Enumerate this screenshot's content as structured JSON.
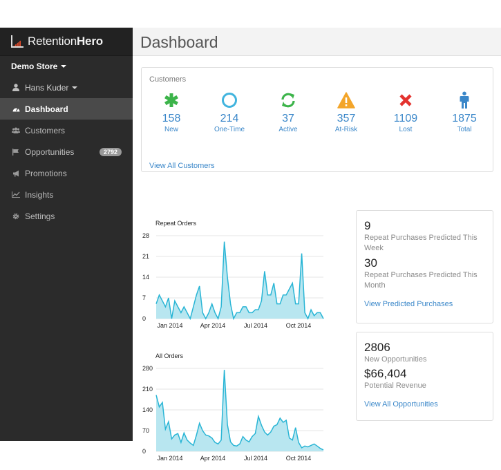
{
  "brand": {
    "name_light": "Retention",
    "name_bold": "Hero"
  },
  "sidebar": {
    "store": "Demo Store",
    "user": "Hans Kuder",
    "items": [
      {
        "label": "Dashboard",
        "icon": "dashboard-icon",
        "active": true
      },
      {
        "label": "Customers",
        "icon": "users-icon"
      },
      {
        "label": "Opportunities",
        "icon": "flag-icon",
        "badge": "2792"
      },
      {
        "label": "Promotions",
        "icon": "megaphone-icon"
      },
      {
        "label": "Insights",
        "icon": "line-chart-icon"
      },
      {
        "label": "Settings",
        "icon": "gear-icon"
      }
    ]
  },
  "header": {
    "title": "Dashboard"
  },
  "customers": {
    "title": "Customers",
    "stats": [
      {
        "value": "158",
        "label": "New",
        "icon": "asterisk-icon",
        "color": "#3cb44a"
      },
      {
        "value": "214",
        "label": "One-Time",
        "icon": "circle-icon",
        "color": "#41b4de"
      },
      {
        "value": "37",
        "label": "Active",
        "icon": "refresh-icon",
        "color": "#3cb44a"
      },
      {
        "value": "357",
        "label": "At-Risk",
        "icon": "warning-icon",
        "color": "#f3a52a"
      },
      {
        "value": "1109",
        "label": "Lost",
        "icon": "x-icon",
        "color": "#e3322e"
      },
      {
        "value": "1875",
        "label": "Total",
        "icon": "person-icon",
        "color": "#3a87c9"
      }
    ],
    "link": "View All Customers"
  },
  "chart_data": [
    {
      "type": "area",
      "title": "Repeat Orders",
      "ylim": [
        0,
        28
      ],
      "yticks": [
        0,
        7,
        14,
        21,
        28
      ],
      "xticks": [
        "Jan 2014",
        "Apr 2014",
        "Jul 2014",
        "Oct 2014"
      ],
      "color": "#29b5d5",
      "fill": "#b8e6f0",
      "grid": true,
      "values": [
        5,
        8,
        6,
        4,
        7,
        0,
        6,
        4,
        2,
        4,
        2,
        0,
        4,
        8,
        11,
        2,
        0,
        2,
        5,
        2,
        0,
        4,
        26,
        14,
        5,
        0,
        2,
        2,
        4,
        4,
        2,
        2,
        3,
        3,
        6,
        16,
        8,
        8,
        12,
        5,
        5,
        8,
        8,
        10,
        12,
        5,
        5,
        22,
        2,
        0,
        3,
        1,
        2,
        2,
        0
      ]
    },
    {
      "type": "area",
      "title": "All Orders",
      "ylim": [
        0,
        280
      ],
      "yticks": [
        0,
        70,
        140,
        210,
        280
      ],
      "xticks": [
        "Jan 2014",
        "Apr 2014",
        "Jul 2014",
        "Oct 2014"
      ],
      "color": "#29b5d5",
      "fill": "#b8e6f0",
      "grid": true,
      "values": [
        190,
        150,
        165,
        75,
        100,
        42,
        55,
        60,
        30,
        62,
        38,
        28,
        20,
        55,
        95,
        70,
        55,
        52,
        45,
        30,
        25,
        38,
        275,
        90,
        32,
        20,
        18,
        25,
        50,
        38,
        32,
        50,
        60,
        118,
        88,
        65,
        55,
        65,
        85,
        90,
        112,
        98,
        105,
        45,
        38,
        80,
        30,
        12,
        18,
        15,
        20,
        25,
        18,
        10,
        5
      ]
    }
  ],
  "predicted": {
    "week_value": "9",
    "week_label": "Repeat Purchases Predicted This Week",
    "month_value": "30",
    "month_label": "Repeat Purchases Predicted This Month",
    "link": "View Predicted Purchases"
  },
  "opportunities": {
    "count": "2806",
    "count_label": "New Opportunities",
    "revenue": "$66,404",
    "revenue_label": "Potential Revenue",
    "link": "View All Opportunities"
  }
}
